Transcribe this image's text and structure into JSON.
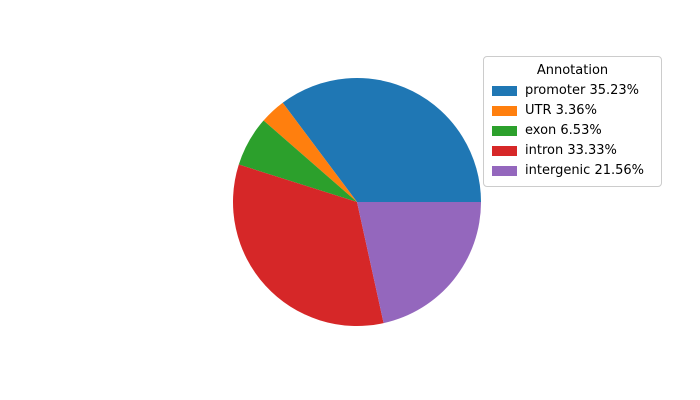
{
  "chart_data": {
    "type": "pie",
    "categories": [
      "promoter",
      "UTR",
      "exon",
      "intron",
      "intergenic"
    ],
    "values": [
      35.23,
      3.36,
      6.53,
      33.33,
      21.56
    ],
    "value_unit": "%",
    "colors": [
      "#1f77b4",
      "#ff7f0e",
      "#2ca02c",
      "#d62728",
      "#9467bd"
    ],
    "start_angle_deg": 0,
    "direction": "counterclockwise",
    "legend_position": "upper right",
    "legend_title": "Annotation",
    "legend_labels": [
      "promoter 35.23%",
      "UTR 3.36%",
      "exon 6.53%",
      "intron 33.33%",
      "intergenic 21.56%"
    ]
  },
  "legend": {
    "title": "Annotation",
    "entries": [
      {
        "label": "promoter 35.23%",
        "color": "#1f77b4"
      },
      {
        "label": "UTR 3.36%",
        "color": "#ff7f0e"
      },
      {
        "label": "exon 6.53%",
        "color": "#2ca02c"
      },
      {
        "label": "intron 33.33%",
        "color": "#d62728"
      },
      {
        "label": "intergenic 21.56%",
        "color": "#9467bd"
      }
    ]
  }
}
